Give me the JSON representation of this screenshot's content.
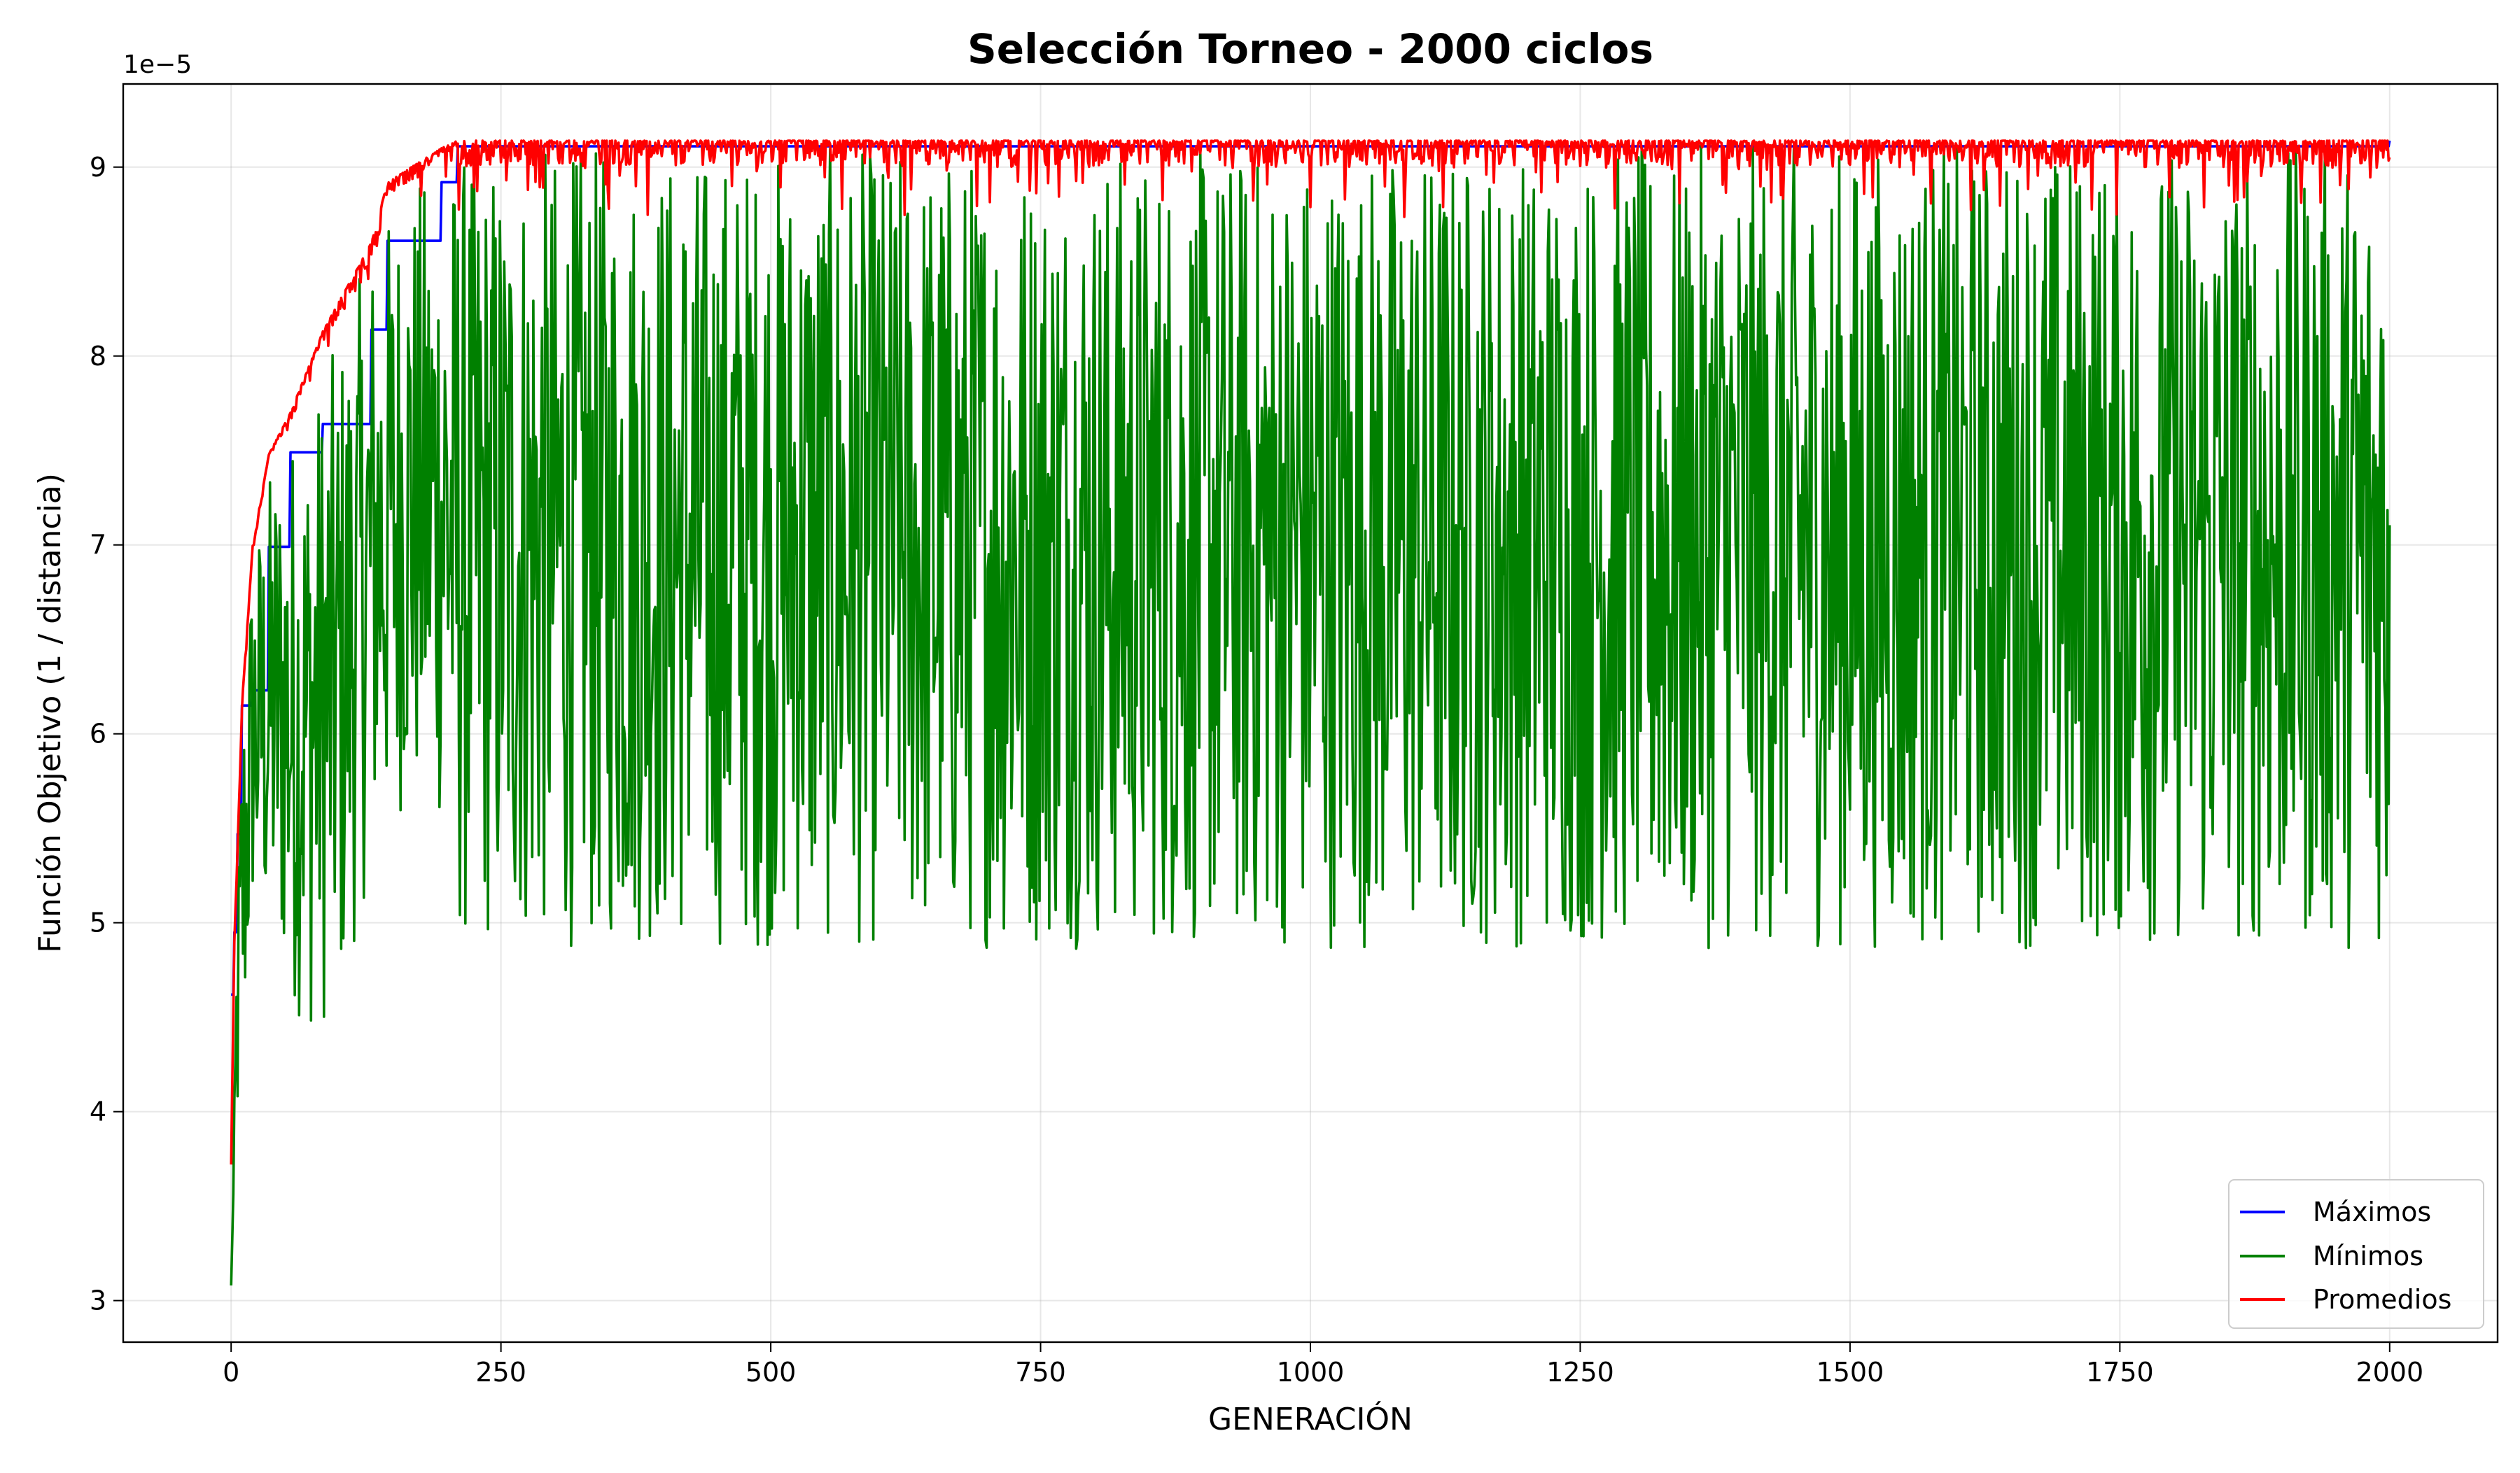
{
  "chart_data": {
    "type": "line",
    "title": "Selección Torneo - 2000 ciclos",
    "xlabel": "GENERACIÓN",
    "ylabel": "Función Objetivo (1 / distancia)",
    "y_offset_text": "1e−5",
    "y_scale_note": "y values are shown in units of 1e-5",
    "xlim": [
      -100,
      2100
    ],
    "ylim": [
      2.78,
      9.44
    ],
    "x_ticks": [
      0,
      250,
      500,
      750,
      1000,
      1250,
      1500,
      1750,
      2000
    ],
    "x_tick_labels": [
      "0",
      "250",
      "500",
      "750",
      "1000",
      "1250",
      "1500",
      "1750",
      "2000"
    ],
    "y_ticks": [
      3,
      4,
      5,
      6,
      7,
      8,
      9
    ],
    "y_tick_labels": [
      "3",
      "4",
      "5",
      "6",
      "7",
      "8",
      "9"
    ],
    "grid": true,
    "legend_position": "bottom-right",
    "series": [
      {
        "name": "Máximos",
        "color": "#0000ff",
        "kind": "step",
        "x": [
          0,
          3,
          6,
          10,
          20,
          35,
          55,
          85,
          130,
          145,
          195,
          210,
          2000
        ],
        "y": [
          4.62,
          4.95,
          5.47,
          6.15,
          6.23,
          6.99,
          7.49,
          7.64,
          8.14,
          8.61,
          8.92,
          9.11,
          9.14
        ]
      },
      {
        "name": "Mínimos",
        "color": "#008000",
        "kind": "noisy",
        "x": [
          0,
          2,
          5,
          10,
          20,
          40,
          70,
          100,
          130,
          160,
          195,
          210,
          2000
        ],
        "y": [
          3.08,
          3.5,
          4.0,
          5.0,
          5.6,
          6.0,
          6.2,
          6.4,
          6.5,
          6.7,
          6.8,
          6.8,
          6.8
        ],
        "range_low": [
          3.08,
          3.5,
          3.8,
          4.0,
          5.0,
          4.8,
          4.4,
          4.5,
          5.3,
          5.6,
          5.5,
          4.86,
          4.86
        ],
        "range_high": [
          3.08,
          3.6,
          5.0,
          6.2,
          7.0,
          7.5,
          7.7,
          8.1,
          8.6,
          8.9,
          9.0,
          9.1,
          9.13
        ]
      },
      {
        "name": "Promedios",
        "color": "#ff0000",
        "kind": "noisy",
        "x": [
          0,
          3,
          6,
          10,
          20,
          35,
          55,
          85,
          130,
          145,
          195,
          210,
          2000
        ],
        "y": [
          3.72,
          4.9,
          5.4,
          6.1,
          6.95,
          7.42,
          7.62,
          8.08,
          8.45,
          8.85,
          9.02,
          9.06,
          9.07
        ],
        "range_low": [
          3.72,
          4.9,
          5.3,
          6.0,
          6.9,
          7.35,
          7.55,
          8.0,
          8.1,
          8.75,
          8.85,
          8.75,
          8.72
        ],
        "range_high": [
          3.72,
          4.9,
          5.4,
          6.15,
          7.0,
          7.48,
          7.7,
          8.13,
          8.6,
          8.92,
          9.1,
          9.14,
          9.14
        ]
      }
    ]
  }
}
